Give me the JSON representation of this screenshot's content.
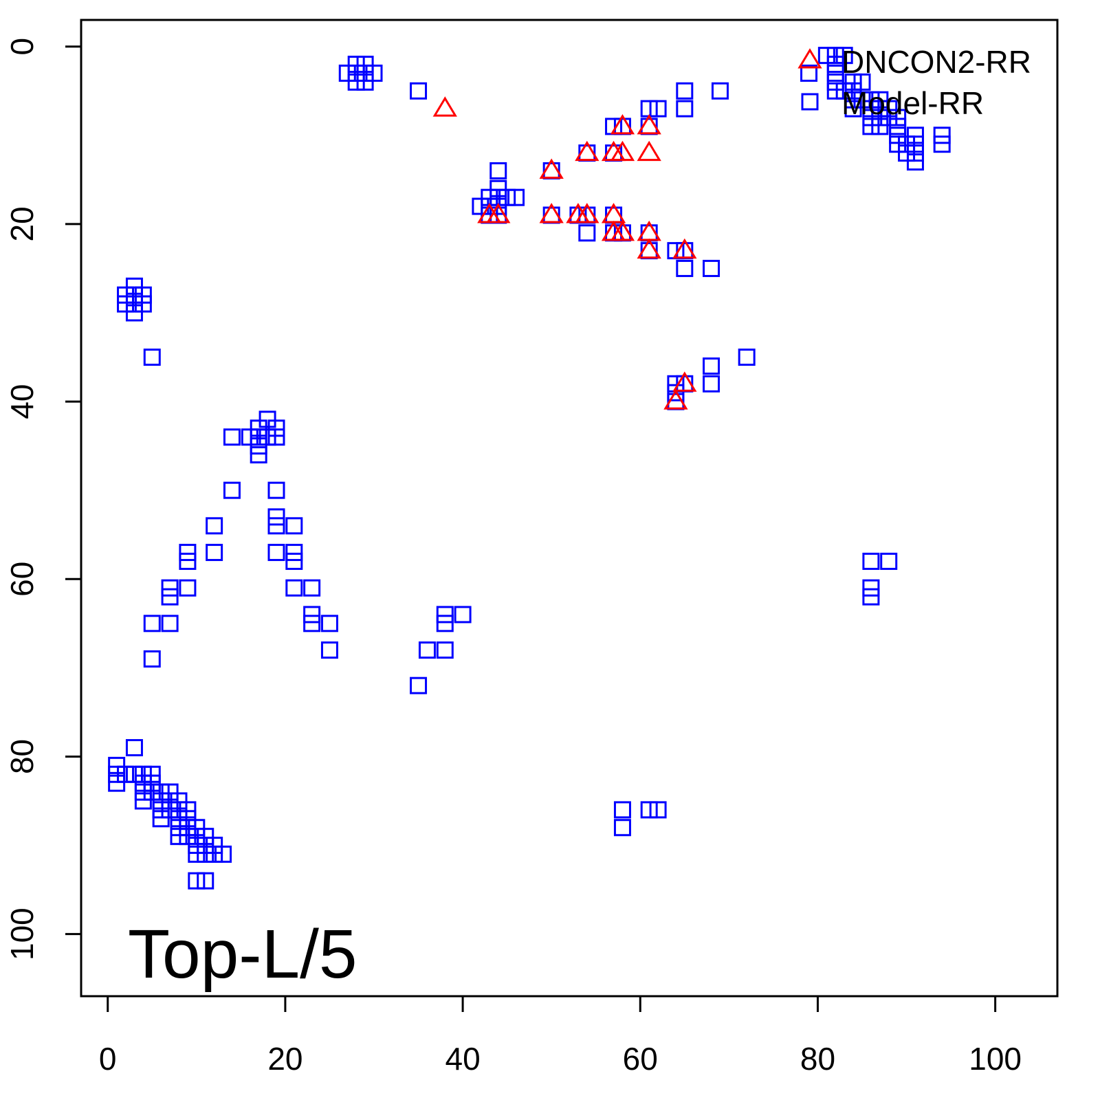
{
  "chart_data": {
    "type": "scatter",
    "title": "",
    "xlabel": "",
    "ylabel": "",
    "xlim": [
      -3,
      107
    ],
    "ylim": [
      107,
      -3
    ],
    "y_inverted": true,
    "grid": false,
    "x_ticks": [
      0,
      20,
      40,
      60,
      80,
      100
    ],
    "y_ticks": [
      0,
      20,
      40,
      60,
      80,
      100
    ],
    "annotation": "Top-L/5",
    "legend": {
      "placement": "top-right",
      "entries": [
        "DNCON2-RR",
        "Model-RR"
      ]
    },
    "series": [
      {
        "name": "DNCON2-RR",
        "marker": "triangle",
        "color": "#ff0000",
        "points": [
          [
            38,
            7
          ],
          [
            58,
            9
          ],
          [
            61,
            9
          ],
          [
            54,
            12
          ],
          [
            57,
            12
          ],
          [
            58,
            12
          ],
          [
            61,
            12
          ],
          [
            50,
            14
          ],
          [
            43,
            19
          ],
          [
            44,
            19
          ],
          [
            50,
            19
          ],
          [
            53,
            19
          ],
          [
            54,
            19
          ],
          [
            57,
            19
          ],
          [
            57,
            21
          ],
          [
            58,
            21
          ],
          [
            61,
            21
          ],
          [
            61,
            23
          ],
          [
            65,
            23
          ],
          [
            65,
            38
          ],
          [
            64,
            40
          ]
        ]
      },
      {
        "name": "Model-RR",
        "marker": "square",
        "color": "#0000ff",
        "points": [
          [
            28,
            2
          ],
          [
            29,
            2
          ],
          [
            27,
            3
          ],
          [
            28,
            3
          ],
          [
            29,
            3
          ],
          [
            30,
            3
          ],
          [
            28,
            4
          ],
          [
            29,
            4
          ],
          [
            35,
            5
          ],
          [
            50,
            14
          ],
          [
            54,
            12
          ],
          [
            57,
            12
          ],
          [
            57,
            9
          ],
          [
            58,
            9
          ],
          [
            61,
            9
          ],
          [
            61,
            7
          ],
          [
            62,
            7
          ],
          [
            65,
            5
          ],
          [
            65,
            7
          ],
          [
            69,
            5
          ],
          [
            50,
            19
          ],
          [
            53,
            19
          ],
          [
            54,
            19
          ],
          [
            54,
            21
          ],
          [
            57,
            19
          ],
          [
            57,
            21
          ],
          [
            58,
            21
          ],
          [
            61,
            21
          ],
          [
            61,
            23
          ],
          [
            64,
            23
          ],
          [
            65,
            23
          ],
          [
            65,
            25
          ],
          [
            68,
            25
          ],
          [
            44,
            14
          ],
          [
            44,
            16
          ],
          [
            44,
            17
          ],
          [
            45,
            17
          ],
          [
            46,
            17
          ],
          [
            42,
            18
          ],
          [
            43,
            17
          ],
          [
            43,
            18
          ],
          [
            44,
            18
          ],
          [
            43,
            19
          ],
          [
            44,
            19
          ],
          [
            64,
            38
          ],
          [
            65,
            38
          ],
          [
            64,
            39
          ],
          [
            64,
            40
          ],
          [
            68,
            36
          ],
          [
            68,
            38
          ],
          [
            72,
            35
          ],
          [
            79,
            3
          ],
          [
            81,
            1
          ],
          [
            82,
            1
          ],
          [
            83,
            1
          ],
          [
            82,
            2
          ],
          [
            82,
            3
          ],
          [
            82,
            4
          ],
          [
            82,
            5
          ],
          [
            83,
            5
          ],
          [
            84,
            4
          ],
          [
            84,
            5
          ],
          [
            84,
            6
          ],
          [
            84,
            7
          ],
          [
            85,
            4
          ],
          [
            85,
            6
          ],
          [
            86,
            6
          ],
          [
            86,
            7
          ],
          [
            86,
            8
          ],
          [
            86,
            9
          ],
          [
            87,
            6
          ],
          [
            87,
            7
          ],
          [
            87,
            8
          ],
          [
            87,
            9
          ],
          [
            88,
            7
          ],
          [
            88,
            8
          ],
          [
            89,
            8
          ],
          [
            89,
            9
          ],
          [
            89,
            10
          ],
          [
            89,
            11
          ],
          [
            90,
            11
          ],
          [
            90,
            12
          ],
          [
            91,
            10
          ],
          [
            91,
            11
          ],
          [
            91,
            12
          ],
          [
            91,
            13
          ],
          [
            94,
            10
          ],
          [
            94,
            11
          ],
          [
            3,
            27
          ],
          [
            2,
            28
          ],
          [
            3,
            28
          ],
          [
            4,
            28
          ],
          [
            2,
            29
          ],
          [
            3,
            29
          ],
          [
            4,
            29
          ],
          [
            3,
            30
          ],
          [
            5,
            35
          ],
          [
            18,
            42
          ],
          [
            17,
            43
          ],
          [
            19,
            43
          ],
          [
            16,
            44
          ],
          [
            17,
            44
          ],
          [
            18,
            44
          ],
          [
            19,
            44
          ],
          [
            14,
            44
          ],
          [
            17,
            45
          ],
          [
            17,
            46
          ],
          [
            14,
            50
          ],
          [
            19,
            50
          ],
          [
            19,
            53
          ],
          [
            19,
            54
          ],
          [
            12,
            54
          ],
          [
            21,
            54
          ],
          [
            12,
            57
          ],
          [
            19,
            57
          ],
          [
            21,
            57
          ],
          [
            21,
            58
          ],
          [
            9,
            57
          ],
          [
            9,
            58
          ],
          [
            9,
            61
          ],
          [
            7,
            61
          ],
          [
            7,
            62
          ],
          [
            21,
            61
          ],
          [
            23,
            61
          ],
          [
            5,
            65
          ],
          [
            7,
            65
          ],
          [
            23,
            64
          ],
          [
            23,
            65
          ],
          [
            25,
            65
          ],
          [
            5,
            69
          ],
          [
            25,
            68
          ],
          [
            35,
            72
          ],
          [
            36,
            68
          ],
          [
            38,
            68
          ],
          [
            38,
            64
          ],
          [
            38,
            65
          ],
          [
            40,
            64
          ],
          [
            86,
            58
          ],
          [
            88,
            58
          ],
          [
            86,
            61
          ],
          [
            86,
            62
          ],
          [
            58,
            86
          ],
          [
            61,
            86
          ],
          [
            62,
            86
          ],
          [
            58,
            88
          ],
          [
            3,
            79
          ],
          [
            1,
            81
          ],
          [
            1,
            82
          ],
          [
            1,
            83
          ],
          [
            2,
            82
          ],
          [
            3,
            82
          ],
          [
            4,
            82
          ],
          [
            5,
            82
          ],
          [
            4,
            83
          ],
          [
            5,
            83
          ],
          [
            4,
            84
          ],
          [
            5,
            84
          ],
          [
            6,
            84
          ],
          [
            7,
            84
          ],
          [
            4,
            85
          ],
          [
            6,
            85
          ],
          [
            7,
            85
          ],
          [
            8,
            85
          ],
          [
            6,
            86
          ],
          [
            7,
            86
          ],
          [
            8,
            86
          ],
          [
            9,
            86
          ],
          [
            6,
            87
          ],
          [
            8,
            87
          ],
          [
            9,
            87
          ],
          [
            8,
            88
          ],
          [
            9,
            88
          ],
          [
            10,
            88
          ],
          [
            8,
            89
          ],
          [
            9,
            89
          ],
          [
            10,
            89
          ],
          [
            11,
            89
          ],
          [
            10,
            90
          ],
          [
            11,
            90
          ],
          [
            12,
            90
          ],
          [
            10,
            91
          ],
          [
            11,
            91
          ],
          [
            12,
            91
          ],
          [
            13,
            91
          ],
          [
            10,
            94
          ],
          [
            11,
            94
          ]
        ]
      }
    ]
  }
}
